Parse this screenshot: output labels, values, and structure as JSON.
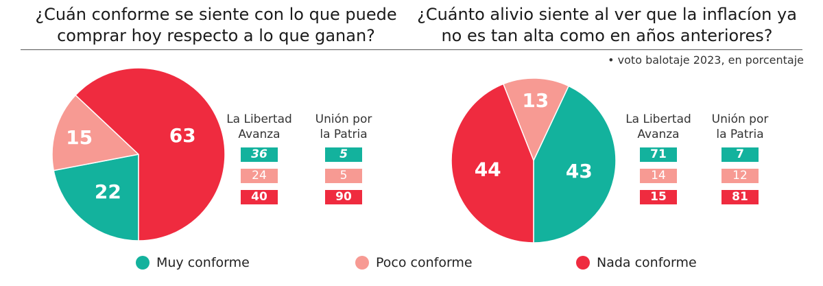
{
  "colors": {
    "muy": "#13b29d",
    "poco": "#f79a93",
    "nada": "#ef2b3f",
    "label_light": "#ffffff"
  },
  "note": "• voto balotaje 2023, en porcentaje",
  "chart_data": [
    {
      "type": "pie",
      "title": [
        "¿Cuán conforme se siente con lo que puede",
        "comprar hoy respecto a lo que ganan?"
      ],
      "slices": [
        {
          "label": "Muy conforme",
          "value": 22,
          "color_key": "muy"
        },
        {
          "label": "Poco conforme",
          "value": 15,
          "color_key": "poco"
        },
        {
          "label": "Nada conforme",
          "value": 63,
          "color_key": "nada"
        }
      ],
      "table": {
        "columns": [
          {
            "name": [
              "La Libertad",
              "Avanza"
            ],
            "values": [
              "36",
              "24",
              "40"
            ]
          },
          {
            "name": [
              "Unión por",
              "la Patria"
            ],
            "values": [
              "5",
              "5",
              "90"
            ]
          }
        ]
      }
    },
    {
      "type": "pie",
      "title": [
        "¿Cuánto alivio siente al ver que la inflacíon ya",
        "no es tan alta como en años anteriores?"
      ],
      "slices": [
        {
          "label": "Muy conforme",
          "value": 43,
          "color_key": "muy"
        },
        {
          "label": "Poco conforme",
          "value": 13,
          "color_key": "poco"
        },
        {
          "label": "Nada conforme",
          "value": 44,
          "color_key": "nada"
        }
      ],
      "table": {
        "columns": [
          {
            "name": [
              "La Libertad",
              "Avanza"
            ],
            "values": [
              "71",
              "14",
              "15"
            ]
          },
          {
            "name": [
              "Unión por",
              "la Patria"
            ],
            "values": [
              "7",
              "12",
              "81"
            ]
          }
        ]
      }
    }
  ],
  "legend": [
    {
      "label": "Muy conforme",
      "color_key": "muy"
    },
    {
      "label": "Poco conforme",
      "color_key": "poco"
    },
    {
      "label": "Nada conforme",
      "color_key": "nada"
    }
  ]
}
